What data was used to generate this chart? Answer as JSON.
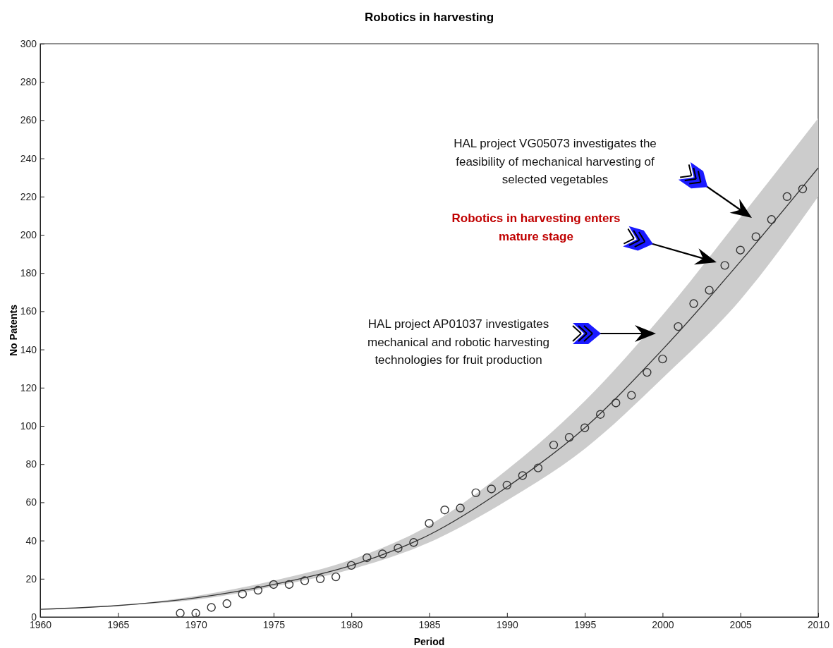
{
  "chart_data": {
    "type": "scatter",
    "title": "Robotics in harvesting",
    "xlabel": "Period",
    "ylabel": "No Patents",
    "xlim": [
      1960,
      2010
    ],
    "xticks": [
      1960,
      1965,
      1970,
      1975,
      1980,
      1985,
      1990,
      1995,
      2000,
      2005,
      2010
    ],
    "ylim": [
      0,
      300
    ],
    "yticks": [
      0,
      20,
      40,
      60,
      80,
      100,
      120,
      140,
      160,
      180,
      200,
      220,
      240,
      260,
      280,
      300
    ],
    "grid": false,
    "series": [
      {
        "type": "line",
        "color": "#333333",
        "x": [
          1960,
          1965,
          1970,
          1975,
          1980,
          1985,
          1990,
          1995,
          2000,
          2005,
          2010
        ],
        "values": [
          4,
          6,
          10,
          17,
          27,
          43,
          68,
          99,
          140,
          186,
          235
        ],
        "lower": [
          4,
          6,
          9,
          16,
          25,
          39,
          61,
          88,
          125,
          166,
          220
        ],
        "upper": [
          4,
          6,
          11,
          19,
          30,
          48,
          77,
          113,
          158,
          209,
          261
        ]
      },
      {
        "marker": "circle",
        "color": "#333333",
        "x": [
          1969,
          1970,
          1971,
          1972,
          1973,
          1974,
          1975,
          1976,
          1977,
          1978,
          1979,
          1980,
          1981,
          1982,
          1983,
          1984,
          1985,
          1986,
          1987,
          1988,
          1989,
          1990,
          1991,
          1992,
          1993,
          1994,
          1995,
          1996,
          1997,
          1998,
          1999,
          2000,
          2001,
          2002,
          2003,
          2004,
          2005,
          2006,
          2007,
          2008,
          2009
        ],
        "values": [
          2,
          2,
          5,
          7,
          12,
          14,
          17,
          17,
          19,
          20,
          21,
          27,
          31,
          33,
          36,
          39,
          49,
          56,
          57,
          65,
          67,
          69,
          74,
          78,
          90,
          94,
          99,
          106,
          112,
          116,
          128,
          135,
          152,
          164,
          171,
          184,
          192,
          199,
          208,
          220,
          224
        ]
      }
    ],
    "annotations": [
      "HAL project VG05073  investigates  the\nfeasibility of mechanical harvesting of\nselected vegetables",
      "Robotics in harvesting enters\nmature stage",
      "HAL project AP01037 investigates\nmechanical and robotic harvesting\ntechnologies for fruit production"
    ]
  }
}
